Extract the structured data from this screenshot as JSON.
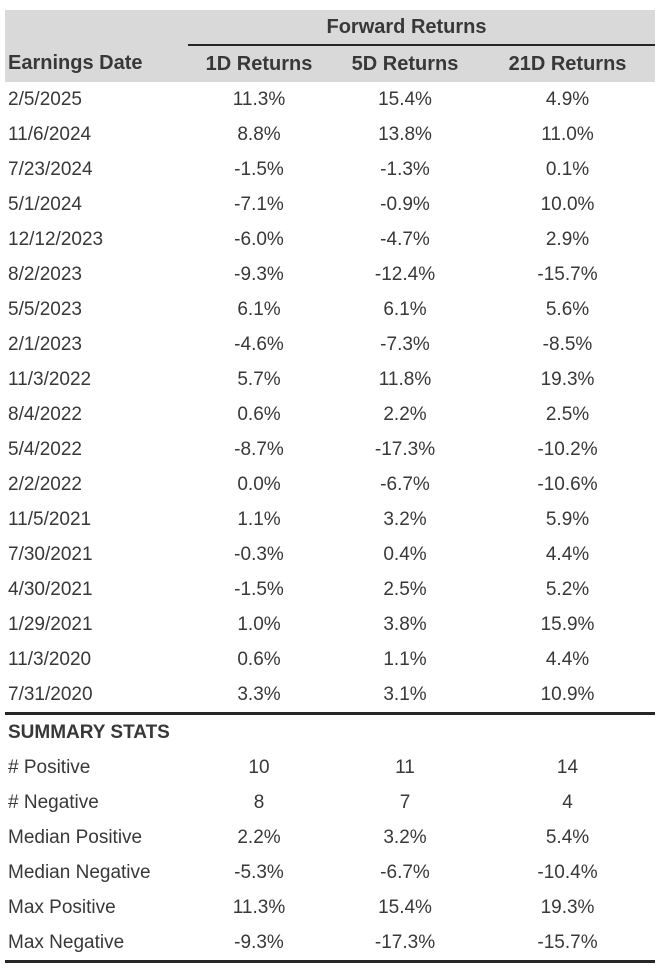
{
  "chart_data": {
    "type": "table",
    "group_header": "Forward Returns",
    "columns": [
      "Earnings Date",
      "1D Returns",
      "5D Returns",
      "21D Returns"
    ],
    "rows": [
      {
        "date": "2/5/2025",
        "r1d": "11.3%",
        "r5d": "15.4%",
        "r21d": "4.9%"
      },
      {
        "date": "11/6/2024",
        "r1d": "8.8%",
        "r5d": "13.8%",
        "r21d": "11.0%"
      },
      {
        "date": "7/23/2024",
        "r1d": "-1.5%",
        "r5d": "-1.3%",
        "r21d": "0.1%"
      },
      {
        "date": "5/1/2024",
        "r1d": "-7.1%",
        "r5d": "-0.9%",
        "r21d": "10.0%"
      },
      {
        "date": "12/12/2023",
        "r1d": "-6.0%",
        "r5d": "-4.7%",
        "r21d": "2.9%"
      },
      {
        "date": "8/2/2023",
        "r1d": "-9.3%",
        "r5d": "-12.4%",
        "r21d": "-15.7%"
      },
      {
        "date": "5/5/2023",
        "r1d": "6.1%",
        "r5d": "6.1%",
        "r21d": "5.6%"
      },
      {
        "date": "2/1/2023",
        "r1d": "-4.6%",
        "r5d": "-7.3%",
        "r21d": "-8.5%"
      },
      {
        "date": "11/3/2022",
        "r1d": "5.7%",
        "r5d": "11.8%",
        "r21d": "19.3%"
      },
      {
        "date": "8/4/2022",
        "r1d": "0.6%",
        "r5d": "2.2%",
        "r21d": "2.5%"
      },
      {
        "date": "5/4/2022",
        "r1d": "-8.7%",
        "r5d": "-17.3%",
        "r21d": "-10.2%"
      },
      {
        "date": "2/2/2022",
        "r1d": "0.0%",
        "r5d": "-6.7%",
        "r21d": "-10.6%"
      },
      {
        "date": "11/5/2021",
        "r1d": "1.1%",
        "r5d": "3.2%",
        "r21d": "5.9%"
      },
      {
        "date": "7/30/2021",
        "r1d": "-0.3%",
        "r5d": "0.4%",
        "r21d": "4.4%"
      },
      {
        "date": "4/30/2021",
        "r1d": "-1.5%",
        "r5d": "2.5%",
        "r21d": "5.2%"
      },
      {
        "date": "1/29/2021",
        "r1d": "1.0%",
        "r5d": "3.8%",
        "r21d": "15.9%"
      },
      {
        "date": "11/3/2020",
        "r1d": "0.6%",
        "r5d": "1.1%",
        "r21d": "4.4%"
      },
      {
        "date": "7/31/2020",
        "r1d": "3.3%",
        "r5d": "3.1%",
        "r21d": "10.9%"
      }
    ],
    "summary_title": "SUMMARY STATS",
    "summary_rows": [
      {
        "label": "# Positive",
        "r1d": "10",
        "r5d": "11",
        "r21d": "14"
      },
      {
        "label": "# Negative",
        "r1d": "8",
        "r5d": "7",
        "r21d": "4"
      },
      {
        "label": "Median Positive",
        "r1d": "2.2%",
        "r5d": "3.2%",
        "r21d": "5.4%"
      },
      {
        "label": "Median Negative",
        "r1d": "-5.3%",
        "r5d": "-6.7%",
        "r21d": "-10.4%"
      },
      {
        "label": "Max Positive",
        "r1d": "11.3%",
        "r5d": "15.4%",
        "r21d": "19.3%"
      },
      {
        "label": "Max Negative",
        "r1d": "-9.3%",
        "r5d": "-17.3%",
        "r21d": "-15.7%"
      }
    ]
  },
  "colors": {
    "header_bg": "#d9d9d9",
    "text": "#383838",
    "rule": "#262626",
    "page_bg": "#ffffff"
  }
}
